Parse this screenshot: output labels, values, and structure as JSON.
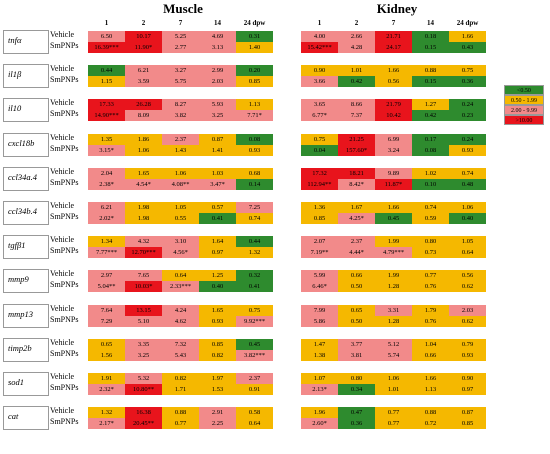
{
  "headers": {
    "muscle": "Muscle",
    "kidney": "Kidney",
    "columns": [
      "1",
      "2",
      "7",
      "14",
      "24 dpw"
    ]
  },
  "colors": {
    "lt050": "#2E8B2E",
    "r050_199": "#F5B800",
    "r200_999": "#F28A8A",
    "gt10": "#E8141C"
  },
  "legend": [
    {
      "label": "<0.50",
      "cls": "g"
    },
    {
      "label": "0.50 - 1.99",
      "cls": "y"
    },
    {
      "label": "2.00 - 9.99",
      "cls": "p"
    },
    {
      "label": ">10.00",
      "cls": "r"
    }
  ],
  "genes": [
    {
      "name": "tnfα",
      "muscle": [
        [
          {
            "v": "6.50",
            "c": "p"
          },
          {
            "v": "10.17",
            "c": "r"
          },
          {
            "v": "5.25",
            "c": "p"
          },
          {
            "v": "4.69",
            "c": "p"
          },
          {
            "v": "0.31",
            "c": "g"
          }
        ],
        [
          {
            "v": "16.39***",
            "c": "r"
          },
          {
            "v": "11.90*",
            "c": "r"
          },
          {
            "v": "2.77",
            "c": "p"
          },
          {
            "v": "3.13",
            "c": "p"
          },
          {
            "v": "1.40",
            "c": "y"
          }
        ]
      ],
      "kidney": [
        [
          {
            "v": "4.00",
            "c": "p"
          },
          {
            "v": "2.66",
            "c": "p"
          },
          {
            "v": "21.71",
            "c": "r"
          },
          {
            "v": "0.18",
            "c": "g"
          },
          {
            "v": "1.66",
            "c": "y"
          }
        ],
        [
          {
            "v": "15.42***",
            "c": "r"
          },
          {
            "v": "4.28",
            "c": "p"
          },
          {
            "v": "24.17",
            "c": "r"
          },
          {
            "v": "0.15",
            "c": "g"
          },
          {
            "v": "0.43",
            "c": "g"
          }
        ]
      ]
    },
    {
      "name": "il1β",
      "muscle": [
        [
          {
            "v": "0.44",
            "c": "g"
          },
          {
            "v": "6.21",
            "c": "p"
          },
          {
            "v": "3.27",
            "c": "p"
          },
          {
            "v": "2.99",
            "c": "p"
          },
          {
            "v": "0.20",
            "c": "g"
          }
        ],
        [
          {
            "v": "1.15",
            "c": "y"
          },
          {
            "v": "3.59",
            "c": "p"
          },
          {
            "v": "5.75",
            "c": "p"
          },
          {
            "v": "2.03",
            "c": "p"
          },
          {
            "v": "0.85",
            "c": "y"
          }
        ]
      ],
      "kidney": [
        [
          {
            "v": "0.90",
            "c": "y"
          },
          {
            "v": "1.01",
            "c": "y"
          },
          {
            "v": "1.66",
            "c": "y"
          },
          {
            "v": "0.88",
            "c": "y"
          },
          {
            "v": "0.75",
            "c": "y"
          }
        ],
        [
          {
            "v": "3.66",
            "c": "p"
          },
          {
            "v": "0.42",
            "c": "g"
          },
          {
            "v": "0.56",
            "c": "y"
          },
          {
            "v": "0.15",
            "c": "g"
          },
          {
            "v": "0.36",
            "c": "g"
          }
        ]
      ]
    },
    {
      "name": "il10",
      "muscle": [
        [
          {
            "v": "17.33",
            "c": "r"
          },
          {
            "v": "26.28",
            "c": "r"
          },
          {
            "v": "8.27",
            "c": "p"
          },
          {
            "v": "5.93",
            "c": "p"
          },
          {
            "v": "1.13",
            "c": "y"
          }
        ],
        [
          {
            "v": "14.90***",
            "c": "r"
          },
          {
            "v": "8.09",
            "c": "p"
          },
          {
            "v": "3.82",
            "c": "p"
          },
          {
            "v": "3.25",
            "c": "p"
          },
          {
            "v": "7.71*",
            "c": "p"
          }
        ]
      ],
      "kidney": [
        [
          {
            "v": "3.65",
            "c": "p"
          },
          {
            "v": "8.66",
            "c": "p"
          },
          {
            "v": "21.79",
            "c": "r"
          },
          {
            "v": "1.27",
            "c": "y"
          },
          {
            "v": "0.24",
            "c": "g"
          }
        ],
        [
          {
            "v": "6.77*",
            "c": "p"
          },
          {
            "v": "7.37",
            "c": "p"
          },
          {
            "v": "10.42",
            "c": "r"
          },
          {
            "v": "0.42",
            "c": "g"
          },
          {
            "v": "0.23",
            "c": "g"
          }
        ]
      ]
    },
    {
      "name": "cxcl18b",
      "muscle": [
        [
          {
            "v": "1.35",
            "c": "y"
          },
          {
            "v": "1.86",
            "c": "y"
          },
          {
            "v": "2.37",
            "c": "p"
          },
          {
            "v": "0.87",
            "c": "y"
          },
          {
            "v": "0.08",
            "c": "g"
          }
        ],
        [
          {
            "v": "3.15*",
            "c": "p"
          },
          {
            "v": "1.06",
            "c": "y"
          },
          {
            "v": "1.43",
            "c": "y"
          },
          {
            "v": "1.41",
            "c": "y"
          },
          {
            "v": "0.93",
            "c": "y"
          }
        ]
      ],
      "kidney": [
        [
          {
            "v": "0.75",
            "c": "y"
          },
          {
            "v": "21.25",
            "c": "r"
          },
          {
            "v": "6.99",
            "c": "p"
          },
          {
            "v": "0.17",
            "c": "g"
          },
          {
            "v": "0.24",
            "c": "g"
          }
        ],
        [
          {
            "v": "0.04",
            "c": "g"
          },
          {
            "v": "157.60*",
            "c": "r"
          },
          {
            "v": "3.24",
            "c": "p"
          },
          {
            "v": "0.08",
            "c": "g"
          },
          {
            "v": "0.93",
            "c": "y"
          }
        ]
      ]
    },
    {
      "name": "ccl34a.4",
      "muscle": [
        [
          {
            "v": "2.04",
            "c": "p"
          },
          {
            "v": "1.65",
            "c": "y"
          },
          {
            "v": "1.06",
            "c": "y"
          },
          {
            "v": "1.03",
            "c": "y"
          },
          {
            "v": "0.68",
            "c": "y"
          }
        ],
        [
          {
            "v": "2.38*",
            "c": "p"
          },
          {
            "v": "4.54*",
            "c": "p"
          },
          {
            "v": "4.08**",
            "c": "p"
          },
          {
            "v": "3.47*",
            "c": "p"
          },
          {
            "v": "0.14",
            "c": "g"
          }
        ]
      ],
      "kidney": [
        [
          {
            "v": "17.32",
            "c": "r"
          },
          {
            "v": "18.21",
            "c": "r"
          },
          {
            "v": "9.89",
            "c": "p"
          },
          {
            "v": "1.02",
            "c": "y"
          },
          {
            "v": "0.74",
            "c": "y"
          }
        ],
        [
          {
            "v": "112.94**",
            "c": "r"
          },
          {
            "v": "8.42*",
            "c": "p"
          },
          {
            "v": "11.87*",
            "c": "r"
          },
          {
            "v": "0.10",
            "c": "g"
          },
          {
            "v": "0.48",
            "c": "g"
          }
        ]
      ]
    },
    {
      "name": "ccl34b.4",
      "muscle": [
        [
          {
            "v": "6.21",
            "c": "p"
          },
          {
            "v": "1.98",
            "c": "y"
          },
          {
            "v": "1.05",
            "c": "y"
          },
          {
            "v": "0.57",
            "c": "y"
          },
          {
            "v": "7.25",
            "c": "p"
          }
        ],
        [
          {
            "v": "2.02*",
            "c": "p"
          },
          {
            "v": "1.98",
            "c": "y"
          },
          {
            "v": "0.55",
            "c": "y"
          },
          {
            "v": "0.41",
            "c": "g"
          },
          {
            "v": "0.74",
            "c": "y"
          }
        ]
      ],
      "kidney": [
        [
          {
            "v": "1.36",
            "c": "y"
          },
          {
            "v": "1.67",
            "c": "y"
          },
          {
            "v": "1.66",
            "c": "y"
          },
          {
            "v": "0.74",
            "c": "y"
          },
          {
            "v": "1.06",
            "c": "y"
          }
        ],
        [
          {
            "v": "0.85",
            "c": "y"
          },
          {
            "v": "4.25*",
            "c": "p"
          },
          {
            "v": "0.45",
            "c": "g"
          },
          {
            "v": "0.59",
            "c": "y"
          },
          {
            "v": "0.40",
            "c": "g"
          }
        ]
      ]
    },
    {
      "name": "tgfβ1",
      "muscle": [
        [
          {
            "v": "1.34",
            "c": "y"
          },
          {
            "v": "4.32",
            "c": "p"
          },
          {
            "v": "3.10",
            "c": "p"
          },
          {
            "v": "1.64",
            "c": "y"
          },
          {
            "v": "0.44",
            "c": "g"
          }
        ],
        [
          {
            "v": "7.77***",
            "c": "p"
          },
          {
            "v": "12.70***",
            "c": "r"
          },
          {
            "v": "4.56*",
            "c": "p"
          },
          {
            "v": "0.97",
            "c": "y"
          },
          {
            "v": "1.32",
            "c": "y"
          }
        ]
      ],
      "kidney": [
        [
          {
            "v": "2.07",
            "c": "p"
          },
          {
            "v": "2.37",
            "c": "p"
          },
          {
            "v": "1.99",
            "c": "y"
          },
          {
            "v": "0.80",
            "c": "y"
          },
          {
            "v": "1.05",
            "c": "y"
          }
        ],
        [
          {
            "v": "7.19**",
            "c": "p"
          },
          {
            "v": "4.44*",
            "c": "p"
          },
          {
            "v": "4.79***",
            "c": "p"
          },
          {
            "v": "0.73",
            "c": "y"
          },
          {
            "v": "0.64",
            "c": "y"
          }
        ]
      ]
    },
    {
      "name": "mmp9",
      "muscle": [
        [
          {
            "v": "2.97",
            "c": "p"
          },
          {
            "v": "7.65",
            "c": "p"
          },
          {
            "v": "0.64",
            "c": "y"
          },
          {
            "v": "1.25",
            "c": "y"
          },
          {
            "v": "0.32",
            "c": "g"
          }
        ],
        [
          {
            "v": "5.04**",
            "c": "p"
          },
          {
            "v": "10.03*",
            "c": "r"
          },
          {
            "v": "2.33***",
            "c": "p"
          },
          {
            "v": "0.40",
            "c": "g"
          },
          {
            "v": "0.41",
            "c": "g"
          }
        ]
      ],
      "kidney": [
        [
          {
            "v": "5.99",
            "c": "p"
          },
          {
            "v": "0.66",
            "c": "y"
          },
          {
            "v": "1.99",
            "c": "y"
          },
          {
            "v": "0.77",
            "c": "y"
          },
          {
            "v": "0.56",
            "c": "y"
          }
        ],
        [
          {
            "v": "6.46*",
            "c": "p"
          },
          {
            "v": "0.50",
            "c": "y"
          },
          {
            "v": "1.28",
            "c": "y"
          },
          {
            "v": "0.76",
            "c": "y"
          },
          {
            "v": "0.62",
            "c": "y"
          }
        ]
      ]
    },
    {
      "name": "mmp13",
      "muscle": [
        [
          {
            "v": "7.64",
            "c": "p"
          },
          {
            "v": "13.15",
            "c": "r"
          },
          {
            "v": "4.24",
            "c": "p"
          },
          {
            "v": "1.65",
            "c": "y"
          },
          {
            "v": "0.75",
            "c": "y"
          }
        ],
        [
          {
            "v": "7.29",
            "c": "p"
          },
          {
            "v": "5.10",
            "c": "p"
          },
          {
            "v": "4.62",
            "c": "p"
          },
          {
            "v": "0.93",
            "c": "y"
          },
          {
            "v": "9.92***",
            "c": "p"
          }
        ]
      ],
      "kidney": [
        [
          {
            "v": "7.99",
            "c": "p"
          },
          {
            "v": "0.65",
            "c": "y"
          },
          {
            "v": "3.31",
            "c": "p"
          },
          {
            "v": "1.79",
            "c": "y"
          },
          {
            "v": "2.03",
            "c": "p"
          }
        ],
        [
          {
            "v": "5.86",
            "c": "p"
          },
          {
            "v": "0.50",
            "c": "y"
          },
          {
            "v": "1.28",
            "c": "y"
          },
          {
            "v": "0.76",
            "c": "y"
          },
          {
            "v": "0.62",
            "c": "y"
          }
        ]
      ]
    },
    {
      "name": "timp2b",
      "muscle": [
        [
          {
            "v": "0.65",
            "c": "y"
          },
          {
            "v": "3.35",
            "c": "p"
          },
          {
            "v": "7.32",
            "c": "p"
          },
          {
            "v": "0.85",
            "c": "y"
          },
          {
            "v": "0.45",
            "c": "g"
          }
        ],
        [
          {
            "v": "1.56",
            "c": "y"
          },
          {
            "v": "3.25",
            "c": "p"
          },
          {
            "v": "5.43",
            "c": "p"
          },
          {
            "v": "0.82",
            "c": "y"
          },
          {
            "v": "3.82***",
            "c": "p"
          }
        ]
      ],
      "kidney": [
        [
          {
            "v": "1.47",
            "c": "y"
          },
          {
            "v": "3.77",
            "c": "p"
          },
          {
            "v": "5.12",
            "c": "p"
          },
          {
            "v": "1.04",
            "c": "y"
          },
          {
            "v": "0.79",
            "c": "y"
          }
        ],
        [
          {
            "v": "1.38",
            "c": "y"
          },
          {
            "v": "3.81",
            "c": "p"
          },
          {
            "v": "5.74",
            "c": "p"
          },
          {
            "v": "0.66",
            "c": "y"
          },
          {
            "v": "0.93",
            "c": "y"
          }
        ]
      ]
    },
    {
      "name": "sod1",
      "muscle": [
        [
          {
            "v": "1.91",
            "c": "y"
          },
          {
            "v": "5.32",
            "c": "p"
          },
          {
            "v": "0.82",
            "c": "y"
          },
          {
            "v": "1.97",
            "c": "y"
          },
          {
            "v": "2.37",
            "c": "p"
          }
        ],
        [
          {
            "v": "2.32*",
            "c": "p"
          },
          {
            "v": "10.80**",
            "c": "r"
          },
          {
            "v": "1.71",
            "c": "y"
          },
          {
            "v": "1.53",
            "c": "y"
          },
          {
            "v": "0.91",
            "c": "y"
          }
        ]
      ],
      "kidney": [
        [
          {
            "v": "1.07",
            "c": "y"
          },
          {
            "v": "0.80",
            "c": "y"
          },
          {
            "v": "1.06",
            "c": "y"
          },
          {
            "v": "1.66",
            "c": "y"
          },
          {
            "v": "0.90",
            "c": "y"
          }
        ],
        [
          {
            "v": "2.13*",
            "c": "p"
          },
          {
            "v": "0.34",
            "c": "g"
          },
          {
            "v": "1.01",
            "c": "y"
          },
          {
            "v": "1.13",
            "c": "y"
          },
          {
            "v": "0.97",
            "c": "y"
          }
        ]
      ]
    },
    {
      "name": "cat",
      "muscle": [
        [
          {
            "v": "1.32",
            "c": "y"
          },
          {
            "v": "16.38",
            "c": "r"
          },
          {
            "v": "0.88",
            "c": "y"
          },
          {
            "v": "2.91",
            "c": "p"
          },
          {
            "v": "0.58",
            "c": "y"
          }
        ],
        [
          {
            "v": "2.17*",
            "c": "p"
          },
          {
            "v": "20.45**",
            "c": "r"
          },
          {
            "v": "0.77",
            "c": "y"
          },
          {
            "v": "2.25",
            "c": "p"
          },
          {
            "v": "0.64",
            "c": "y"
          }
        ]
      ],
      "kidney": [
        [
          {
            "v": "1.96",
            "c": "y"
          },
          {
            "v": "0.47",
            "c": "g"
          },
          {
            "v": "0.77",
            "c": "y"
          },
          {
            "v": "0.88",
            "c": "y"
          },
          {
            "v": "0.87",
            "c": "y"
          }
        ],
        [
          {
            "v": "2.60*",
            "c": "p"
          },
          {
            "v": "0.36",
            "c": "g"
          },
          {
            "v": "0.77",
            "c": "y"
          },
          {
            "v": "0.72",
            "c": "y"
          },
          {
            "v": "0.85",
            "c": "y"
          }
        ]
      ]
    }
  ],
  "row_labels": [
    "Vehicle",
    "SmPNPs"
  ]
}
